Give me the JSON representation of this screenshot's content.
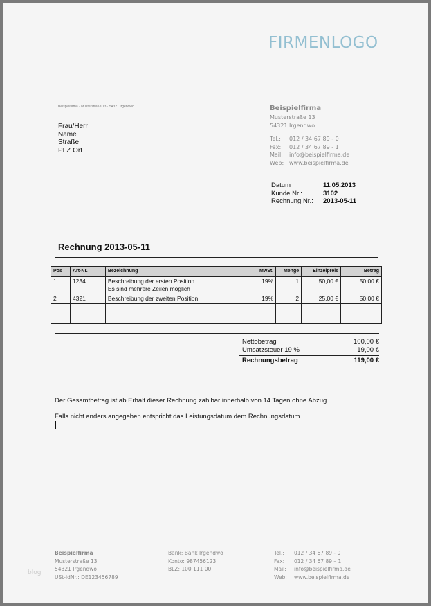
{
  "logo": "FIRMENLOGO",
  "sender_line": "Beispielfirma · Musterstraße 13 · 54321 Irgendwo",
  "recipient": [
    "Frau/Herr",
    "Name",
    "Straße",
    "PLZ Ort"
  ],
  "company": {
    "name": "Beispielfirma",
    "street": "Musterstraße 13",
    "city": "54321 Irgendwo",
    "contacts": [
      {
        "k": "Tel.:",
        "v": "012 / 34 67 89 - 0"
      },
      {
        "k": "Fax:",
        "v": "012 / 34 67 89 - 1"
      },
      {
        "k": "Mail:",
        "v": "info@beispielfirma.de"
      },
      {
        "k": "Web:",
        "v": "www.beispielfirma.de"
      }
    ]
  },
  "meta": [
    {
      "k": "Datum",
      "v": "11.05.2013"
    },
    {
      "k": "Kunde Nr.:",
      "v": "3102"
    },
    {
      "k": "Rechnung Nr.:",
      "v": "2013-05-11"
    }
  ],
  "title": "Rechnung 2013-05-11",
  "table": {
    "headers": [
      "Pos",
      "Art-Nr.",
      "Bezeichnung",
      "MwSt.",
      "Menge",
      "Einzelpreis",
      "Betrag"
    ],
    "rows": [
      {
        "pos": "1",
        "art": "1234",
        "desc": "Beschreibung der ersten Position",
        "desc2": "Es sind mehrere Zeilen möglich",
        "mwst": "19%",
        "menge": "1",
        "preis": "50,00 €",
        "betrag": "50,00 €"
      },
      {
        "pos": "2",
        "art": "4321",
        "desc": "Beschreibung der zweiten Position",
        "desc2": "",
        "mwst": "19%",
        "menge": "2",
        "preis": "25,00 €",
        "betrag": "50,00 €"
      }
    ]
  },
  "totals": [
    {
      "k": "Nettobetrag",
      "v": "100,00 €"
    },
    {
      "k": "Umsatzsteuer 19 %",
      "v": "19,00 €"
    },
    {
      "k": "Rechnungsbetrag",
      "v": "119,00 €"
    }
  ],
  "text1": "Der Gesamtbetrag ist ab Erhalt dieser Rechnung zahlbar innerhalb von 14 Tagen ohne Abzug.",
  "text2": "Falls nicht anders angegeben entspricht das Leistungsdatum dem Rechnungsdatum.",
  "footer": {
    "col1": [
      "Beispielfirma",
      "Musterstraße 13",
      "54321 Irgendwo",
      "USt-IdNr.: DE123456789"
    ],
    "col2": [
      "Bank:  Bank Irgendwo",
      "Konto: 987456123",
      "BLZ:   100 111 00"
    ],
    "col3": [
      {
        "k": "Tel.:",
        "v": "012 / 34 67 89 - 0"
      },
      {
        "k": "Fax:",
        "v": "012 / 34 67 89 – 1"
      },
      {
        "k": "Mail:",
        "v": "info@beispielfirma.de"
      },
      {
        "k": "Web:",
        "v": "www.beispielfirma.de"
      }
    ]
  },
  "watermark": "blog"
}
